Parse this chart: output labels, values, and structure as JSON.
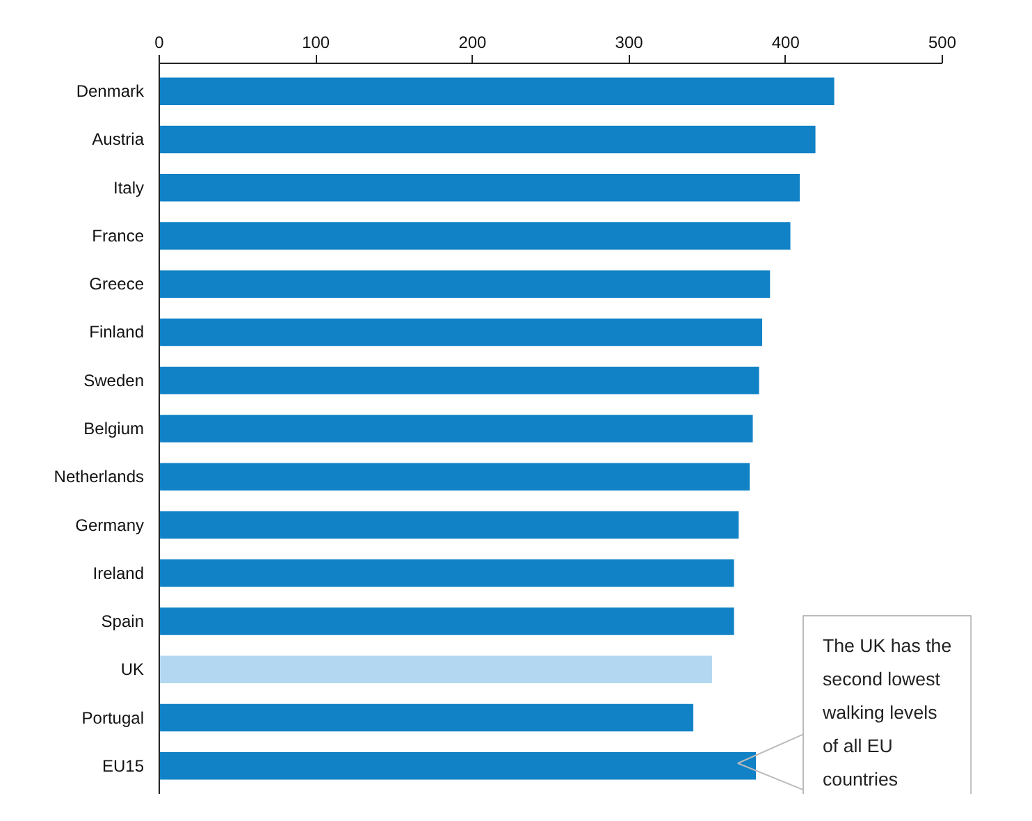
{
  "chart_data": {
    "type": "bar",
    "orientation": "horizontal",
    "categories": [
      "Denmark",
      "Austria",
      "Italy",
      "France",
      "Greece",
      "Finland",
      "Sweden",
      "Belgium",
      "Netherlands",
      "Germany",
      "Ireland",
      "Spain",
      "UK",
      "Portugal",
      "EU15"
    ],
    "values": [
      431,
      419,
      409,
      403,
      390,
      385,
      383,
      379,
      377,
      370,
      367,
      367,
      353,
      341,
      381
    ],
    "colors": [
      "#1082c5",
      "#1082c5",
      "#1082c5",
      "#1082c5",
      "#1082c5",
      "#1082c5",
      "#1082c5",
      "#1082c5",
      "#1082c5",
      "#1082c5",
      "#1082c5",
      "#1082c5",
      "#b3d7f0",
      "#1082c5",
      "#1082c5"
    ],
    "xlim": [
      0,
      500
    ],
    "xticks": [
      0,
      100,
      200,
      300,
      400,
      500
    ],
    "grid": false,
    "annotations": [
      "The UK has the second lowest walking levels of all EU countries"
    ]
  }
}
